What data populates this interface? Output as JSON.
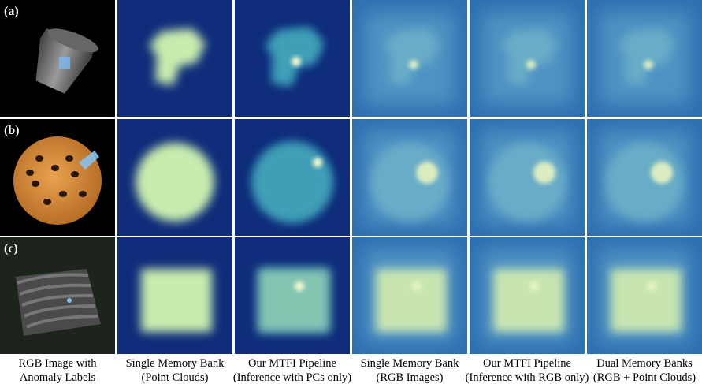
{
  "rows": [
    {
      "label": "(a)"
    },
    {
      "label": "(b)"
    },
    {
      "label": "(c)"
    }
  ],
  "columns": [
    {
      "caption_lines": [
        "RGB Image with",
        "Anomaly Labels"
      ]
    },
    {
      "caption_lines": [
        "Single Memory Bank",
        "(Point Clouds)"
      ]
    },
    {
      "caption_lines": [
        "Our MTFI Pipeline",
        "(Inference with PCs only)"
      ]
    },
    {
      "caption_lines": [
        "Single Memory Bank",
        "(RGB Images)"
      ]
    },
    {
      "caption_lines": [
        "Our MTFI Pipeline",
        "(Inference with RGB only)"
      ]
    },
    {
      "caption_lines": [
        "Dual Memory Banks",
        "(RGB + Point Clouds)"
      ]
    }
  ]
}
